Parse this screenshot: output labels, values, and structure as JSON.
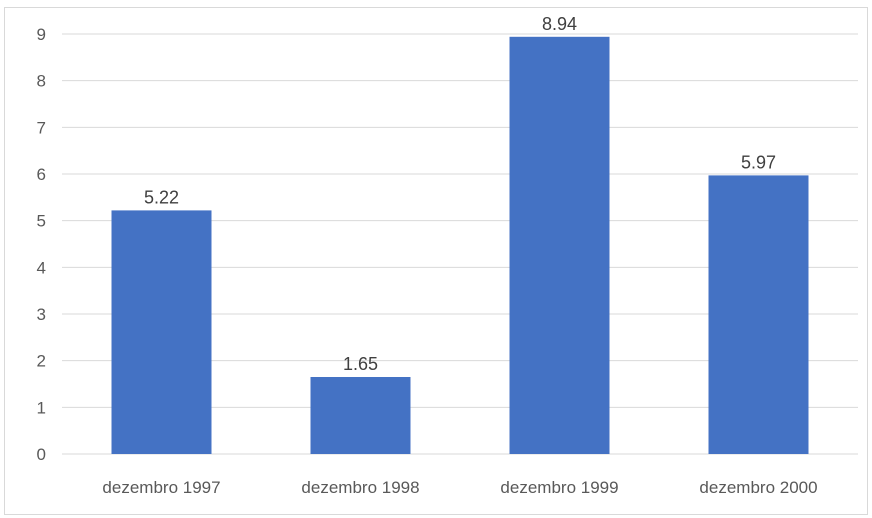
{
  "chart_data": {
    "type": "bar",
    "categories": [
      "dezembro 1997",
      "dezembro 1998",
      "dezembro 1999",
      "dezembro 2000"
    ],
    "values": [
      5.22,
      1.65,
      8.94,
      5.97
    ],
    "data_labels": [
      "5.22",
      "1.65",
      "8.94",
      "5.97"
    ],
    "y_ticks": [
      "0",
      "1",
      "2",
      "3",
      "4",
      "5",
      "6",
      "7",
      "8",
      "9"
    ],
    "ylim": [
      0,
      9
    ],
    "grid": true,
    "legend": "none",
    "bar_color": "#4472c4",
    "grid_color": "#d9d9d9",
    "title": "",
    "xlabel": "",
    "ylabel": ""
  }
}
